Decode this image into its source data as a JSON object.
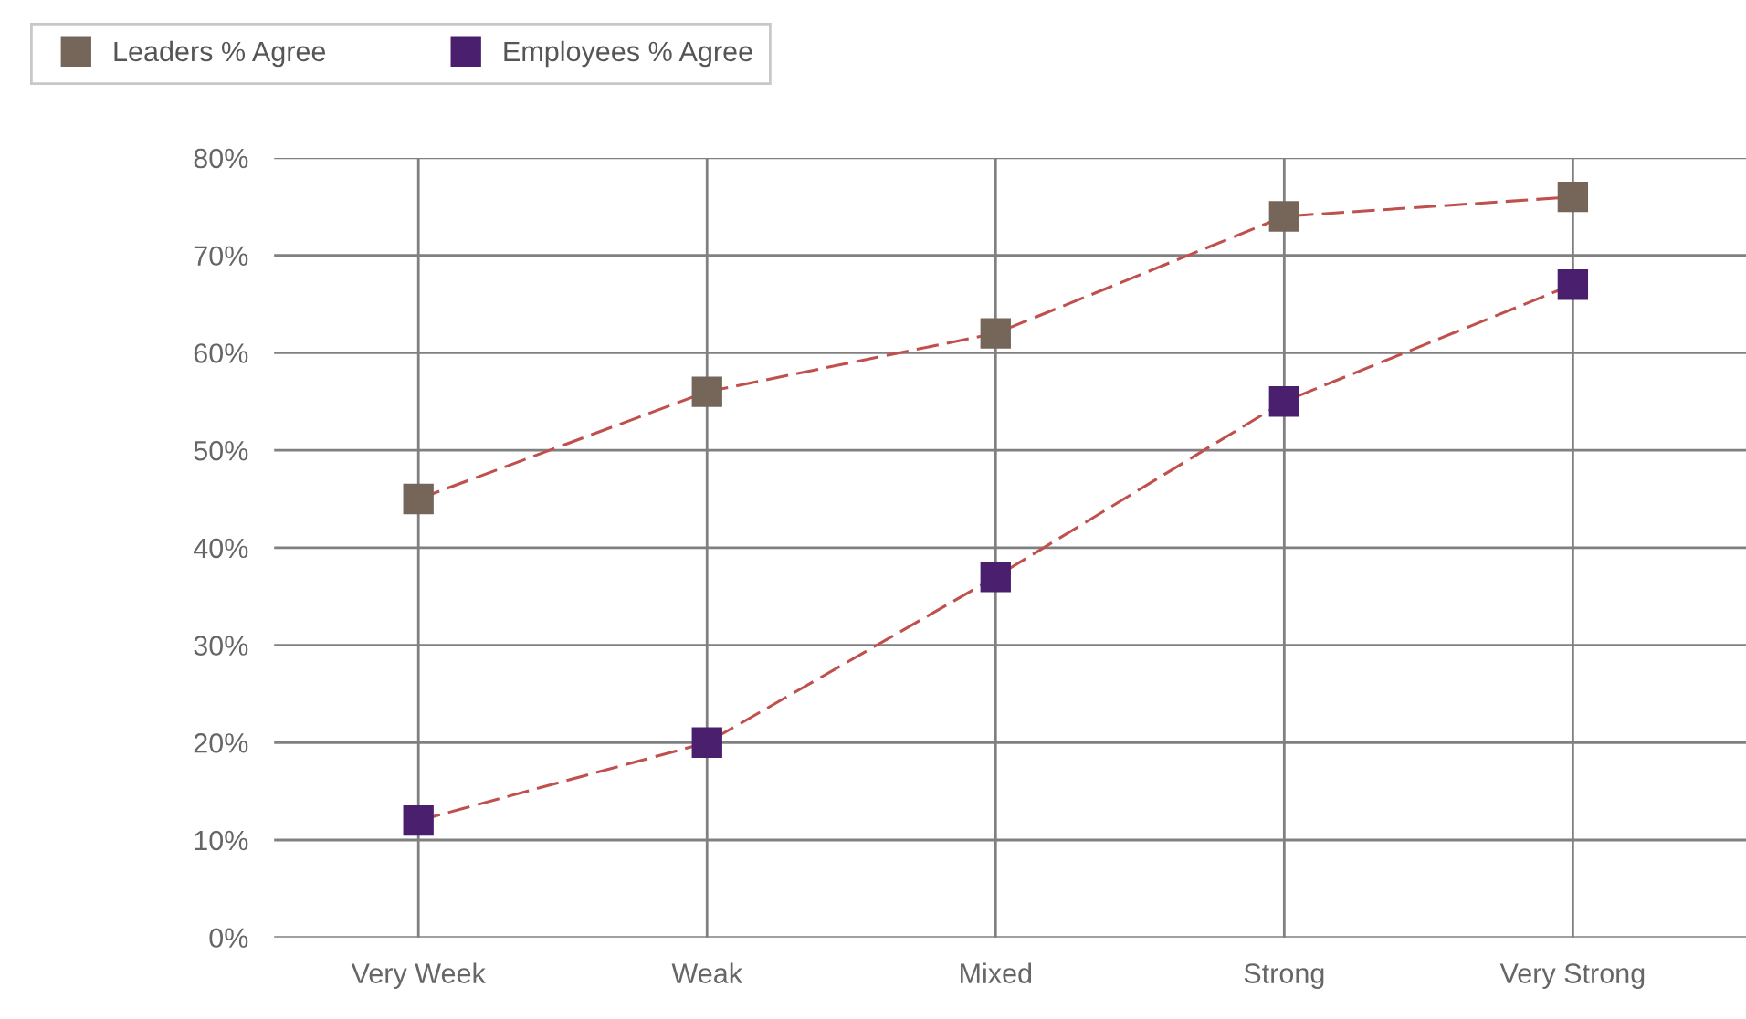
{
  "chart_data": {
    "type": "line",
    "categories": [
      "Very Week",
      "Weak",
      "Mixed",
      "Strong",
      "Very Strong"
    ],
    "series": [
      {
        "name": "Leaders % Agree",
        "color": "#76665a",
        "values": [
          45,
          56,
          62,
          74,
          76
        ]
      },
      {
        "name": "Employees % Agree",
        "color": "#4a1f6e",
        "values": [
          12,
          20,
          37,
          55,
          67
        ]
      }
    ],
    "ylim": [
      0,
      80
    ],
    "yticks": [
      {
        "value": 0,
        "label": "0%"
      },
      {
        "value": 10,
        "label": "10%"
      },
      {
        "value": 20,
        "label": "20%"
      },
      {
        "value": 30,
        "label": "30%"
      },
      {
        "value": 40,
        "label": "40%"
      },
      {
        "value": 50,
        "label": "50%"
      },
      {
        "value": 60,
        "label": "60%"
      },
      {
        "value": 70,
        "label": "70%"
      },
      {
        "value": 80,
        "label": "80%"
      }
    ],
    "grid": true,
    "legend": "top left",
    "marker": "square",
    "line_style": "dashed"
  }
}
